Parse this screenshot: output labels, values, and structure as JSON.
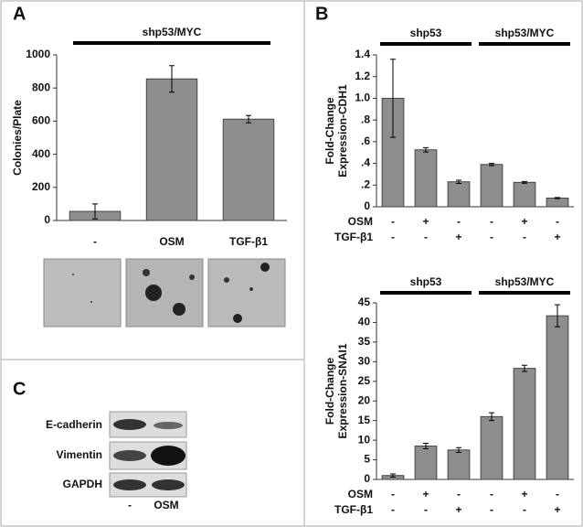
{
  "chart_data": [
    {
      "type": "bar",
      "groups": [
        "shp53/MYC"
      ],
      "ylabel": [
        "Colonies/Plate"
      ],
      "categories": [
        "-",
        "OSM",
        "TGF-β1"
      ],
      "values": [
        55,
        855,
        612
      ],
      "errors": [
        45,
        80,
        22
      ],
      "color": "#8e8e8e",
      "ylim": [
        0,
        1000
      ],
      "yticks": [
        0,
        200,
        400,
        600,
        800,
        1000
      ]
    },
    {
      "type": "bar",
      "groups": [
        "shp53",
        "shp53/MYC"
      ],
      "ylabel": [
        "Fold-Change",
        "Expression-CDH1"
      ],
      "categories": [
        null,
        null,
        null,
        null,
        null,
        null
      ],
      "values": [
        1.0,
        0.525,
        0.23,
        0.39,
        0.225,
        0.08
      ],
      "errors": [
        0.36,
        0.02,
        0.015,
        0.01,
        0.008,
        0.005
      ],
      "color": "#8e8e8e",
      "ylim": [
        0,
        1.4
      ],
      "yticks": [
        0,
        {
          "value": 0.2,
          "label": ".2"
        },
        {
          "value": 0.4,
          "label": ".4"
        },
        {
          "value": 0.6,
          "label": ".6"
        },
        {
          "value": 0.8,
          "label": ".8"
        },
        {
          "value": 1,
          "label": "1.0"
        },
        1.2,
        1.4
      ],
      "treatments": [
        {
          "name": "OSM",
          "signs": [
            "-",
            "+",
            "-",
            "-",
            "+",
            "-"
          ]
        },
        {
          "name": "TGF-β1",
          "signs": [
            "-",
            "-",
            "+",
            "-",
            "-",
            "+"
          ]
        }
      ]
    },
    {
      "type": "bar",
      "groups": [
        "shp53",
        "shp53/MYC"
      ],
      "ylabel": [
        "Fold-Change",
        "Expression-SNAI1"
      ],
      "categories": [
        null,
        null,
        null,
        null,
        null,
        null
      ],
      "values": [
        1,
        8.5,
        7.5,
        16,
        28.3,
        41.7
      ],
      "errors": [
        0.4,
        0.7,
        0.6,
        1,
        0.8,
        2.8
      ],
      "color": "#8e8e8e",
      "ylim": [
        0,
        45
      ],
      "yticks": [
        0,
        5,
        10,
        15,
        20,
        25,
        30,
        35,
        40,
        45
      ],
      "treatments": [
        {
          "name": "OSM",
          "signs": [
            "-",
            "+",
            "-",
            "-",
            "+",
            "-"
          ]
        },
        {
          "name": "TGF-β1",
          "signs": [
            "-",
            "-",
            "+",
            "-",
            "-",
            "+"
          ]
        }
      ]
    }
  ],
  "panel_labels": [
    "A",
    "B",
    "C"
  ],
  "blot": {
    "rows": [
      "E-cadherin",
      "Vimentin",
      "GAPDH"
    ],
    "lanes": [
      "-",
      "OSM"
    ]
  }
}
